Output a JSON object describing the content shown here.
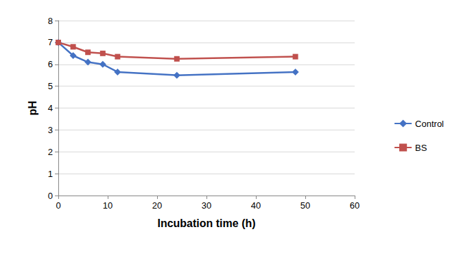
{
  "chart_data": {
    "type": "line",
    "x_label": "Incubation time (h)",
    "y_label": "pH",
    "x": [
      0,
      3,
      6,
      9,
      12,
      24,
      48
    ],
    "series": [
      {
        "name": "Control",
        "color": "#4472c4",
        "marker": "diamond",
        "values": [
          7.0,
          6.4,
          6.1,
          6.0,
          5.65,
          5.5,
          5.65
        ]
      },
      {
        "name": "BS",
        "color": "#c0504d",
        "marker": "square",
        "values": [
          7.0,
          6.8,
          6.55,
          6.5,
          6.35,
          6.25,
          6.35
        ]
      }
    ],
    "xlim": [
      0,
      60
    ],
    "xticks": [
      0,
      10,
      20,
      30,
      40,
      50,
      60
    ],
    "ylim": [
      0,
      8
    ],
    "yticks": [
      0,
      1,
      2,
      3,
      4,
      5,
      6,
      7,
      8
    ],
    "grid": true,
    "legend": "right"
  }
}
